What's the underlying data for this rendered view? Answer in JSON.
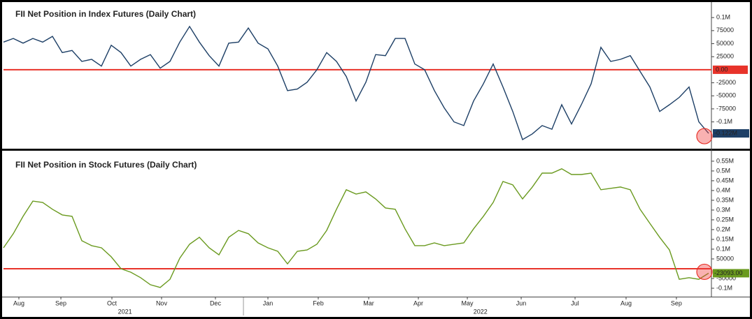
{
  "chart_data": [
    {
      "type": "line",
      "title": "FII Net Position in Index Futures (Daily Chart)",
      "series": [
        {
          "name": "FII Net Position in Index Futures",
          "color": "#1d3f66",
          "values": [
            53000,
            60000,
            51000,
            60000,
            53000,
            64000,
            33000,
            37000,
            16000,
            20000,
            7000,
            47000,
            33000,
            7000,
            20000,
            29000,
            3000,
            16000,
            53000,
            83000,
            53000,
            27000,
            7000,
            51000,
            53000,
            80000,
            51000,
            40000,
            7000,
            -40000,
            -37000,
            -24000,
            0,
            33000,
            16000,
            -13000,
            -60000,
            -24000,
            29000,
            27000,
            60000,
            60000,
            11000,
            0,
            -40000,
            -73000,
            -100000,
            -107000,
            -60000,
            -27000,
            11000,
            -33000,
            -80000,
            -134000,
            -123000,
            -107000,
            -114000,
            -67000,
            -104000,
            -67000,
            -27000,
            43000,
            16000,
            20000,
            27000,
            -3000,
            -33000,
            -80000,
            -67000,
            -53000,
            -33000,
            -100000,
            -122000
          ]
        }
      ],
      "xlim": [
        0,
        72
      ],
      "ylim": [
        -150000,
        123000
      ],
      "yticks": [
        {
          "value": 100000,
          "label": "0.1M"
        },
        75000,
        50000,
        25000,
        -25000,
        -50000,
        -75000,
        {
          "value": -100000,
          "label": "-0.1M"
        }
      ],
      "hline": {
        "value": 0,
        "label": "0.00",
        "color": "#e8332a"
      },
      "last_label": {
        "value": -122000,
        "label": "-0.122M",
        "color": "#1d3f66"
      }
    },
    {
      "type": "line",
      "title": "FII Net Position in Stock Futures (Daily Chart)",
      "series": [
        {
          "name": "FII Net Position in Stock Futures",
          "color": "#6a9a1f",
          "values": [
            107000,
            179000,
            268000,
            346000,
            339000,
            304000,
            275000,
            268000,
            143000,
            118000,
            107000,
            61000,
            0,
            -18000,
            -46000,
            -82000,
            -96000,
            -54000,
            54000,
            125000,
            161000,
            107000,
            71000,
            161000,
            196000,
            179000,
            132000,
            107000,
            89000,
            25000,
            89000,
            96000,
            125000,
            196000,
            304000,
            404000,
            382000,
            393000,
            357000,
            311000,
            304000,
            204000,
            118000,
            118000,
            132000,
            118000,
            125000,
            132000,
            204000,
            268000,
            339000,
            446000,
            429000,
            357000,
            418000,
            489000,
            489000,
            511000,
            482000,
            482000,
            489000,
            404000,
            411000,
            418000,
            404000,
            304000,
            232000,
            161000,
            96000,
            -54000,
            -46000,
            -54000,
            -23093
          ]
        }
      ],
      "xlim": [
        0,
        72
      ],
      "ylim": [
        -143000,
        589000
      ],
      "yticks": [
        {
          "value": 550000,
          "label": "0.55M"
        },
        {
          "value": 500000,
          "label": "0.5M"
        },
        {
          "value": 450000,
          "label": "0.45M"
        },
        {
          "value": 400000,
          "label": "0.4M"
        },
        {
          "value": 350000,
          "label": "0.35M"
        },
        {
          "value": 300000,
          "label": "0.3M"
        },
        {
          "value": 250000,
          "label": "0.25M"
        },
        {
          "value": 200000,
          "label": "0.2M"
        },
        {
          "value": 150000,
          "label": "0.15M"
        },
        {
          "value": 100000,
          "label": "0.1M"
        },
        50000,
        -50000,
        {
          "value": -100000,
          "label": "-0.1M"
        }
      ],
      "hline": {
        "value": 0,
        "color": "#e8332a"
      },
      "last_label": {
        "value": -23093,
        "label": "-23093.00",
        "color": "#6a9a1f"
      },
      "xticks": [
        {
          "value": 1.57,
          "label": "Aug"
        },
        {
          "value": 5.86,
          "label": "Sep"
        },
        {
          "value": 11.07,
          "label": "Oct"
        },
        {
          "value": 16.14,
          "label": "Nov"
        },
        {
          "value": 21.64,
          "label": "Dec"
        },
        {
          "value": 27,
          "label": "Jan"
        },
        {
          "value": 32.14,
          "label": "Feb"
        },
        {
          "value": 37.29,
          "label": "Mar"
        },
        {
          "value": 42.36,
          "label": "Apr"
        },
        {
          "value": 47.36,
          "label": "May"
        },
        {
          "value": 52.86,
          "label": "Jun"
        },
        {
          "value": 58.36,
          "label": "Jul"
        },
        {
          "value": 63.57,
          "label": "Aug"
        },
        {
          "value": 68.71,
          "label": "Sep"
        }
      ],
      "year_ticks": [
        {
          "value": 12.4,
          "label": "2021"
        },
        {
          "value": 48.7,
          "label": "2022"
        }
      ]
    }
  ]
}
